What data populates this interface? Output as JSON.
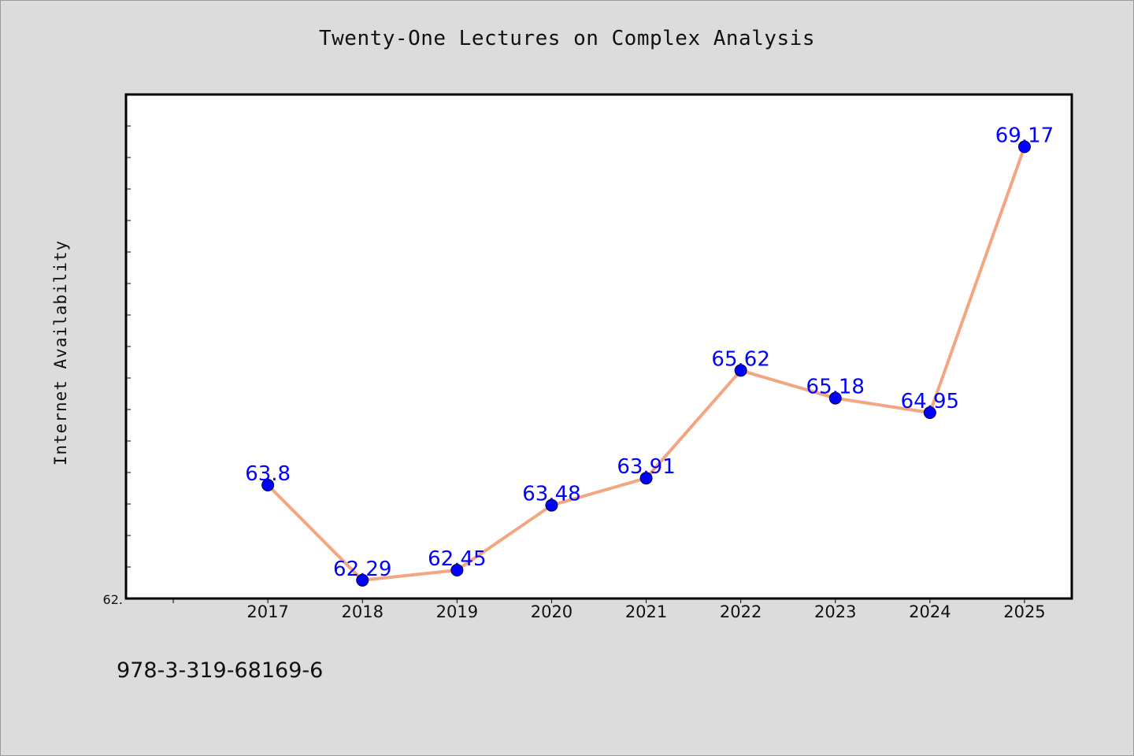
{
  "title": "Twenty-One Lectures on Complex Analysis",
  "footer_code": "978-3-319-68169-6",
  "chart_data": {
    "type": "line",
    "title": "Twenty-One Lectures on Complex Analysis",
    "xlabel": "",
    "ylabel": "Internet Availability",
    "categories": [
      "2017",
      "2018",
      "2019",
      "2020",
      "2021",
      "2022",
      "2023",
      "2024",
      "2025"
    ],
    "series": [
      {
        "values": [
          63.8,
          62.29,
          62.45,
          63.48,
          63.91,
          65.62,
          65.18,
          64.95,
          69.17
        ],
        "data_labels": [
          "63.8",
          "62.29",
          "62.45",
          "63.48",
          "63.91",
          "65.62",
          "65.18",
          "64.95",
          "69.17"
        ]
      }
    ],
    "ytick_labels": [
      "62."
    ],
    "ylim": [
      62.0,
      70.0
    ],
    "grid": false,
    "legend": "none",
    "colors": {
      "line": "#f4a582",
      "marker": "#0000ff",
      "data_label": "#0000ff",
      "plot_bg": "#ffffff",
      "page_bg": "#dcdcdc"
    }
  }
}
